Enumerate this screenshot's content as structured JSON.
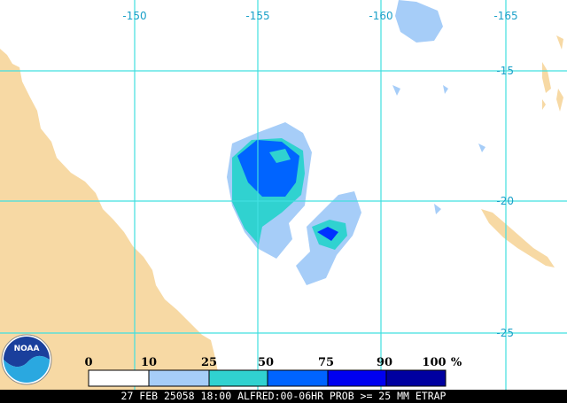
{
  "map": {
    "lon_labels": [
      "-150",
      "-155",
      "-160",
      "-165"
    ],
    "lat_labels": [
      "-15",
      "-20",
      "-25"
    ]
  },
  "legend": {
    "labels": [
      "0",
      "10",
      "25",
      "50",
      "75",
      "90",
      "100"
    ],
    "unit": "%"
  },
  "logo": "NOAA",
  "footer": "27 FEB 25058 18:00 ALFRED:00-06HR PROB >= 25 MM ETRAP"
}
